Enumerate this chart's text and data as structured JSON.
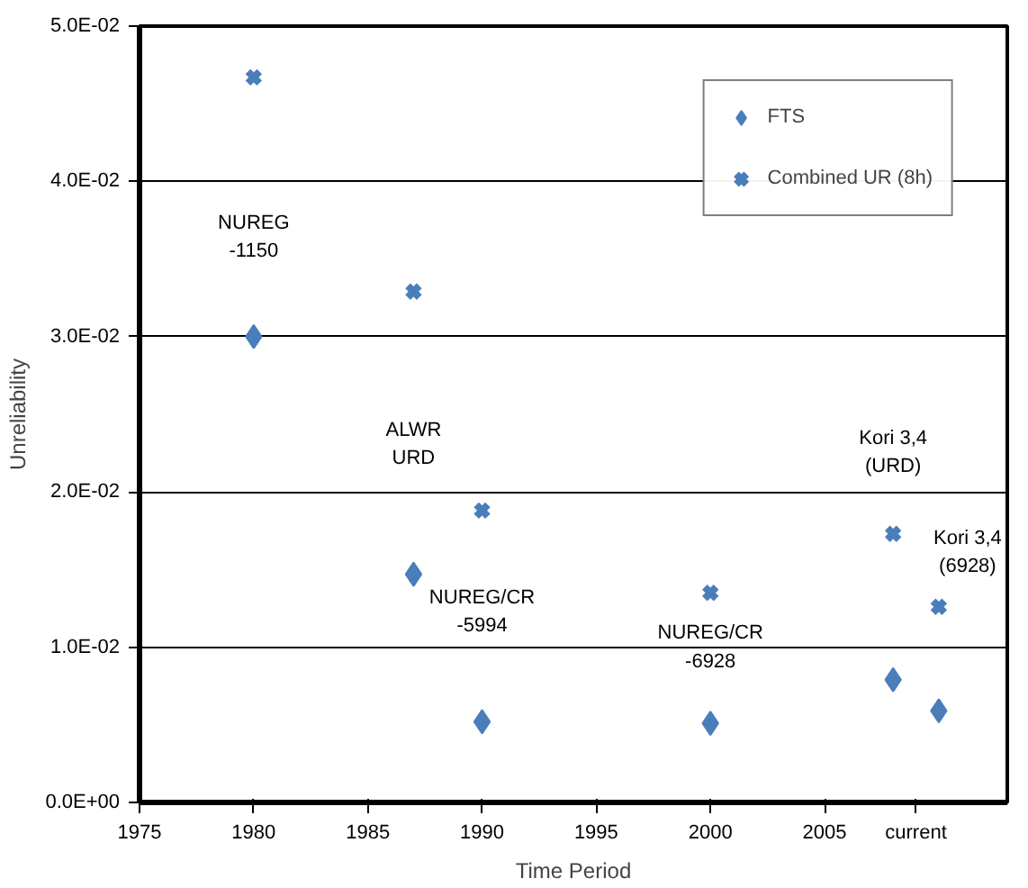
{
  "chart_data": {
    "type": "scatter",
    "xlabel": "Time Period",
    "ylabel": "Unreliability",
    "x": [
      1980,
      1987,
      1990,
      2000,
      2008,
      2010
    ],
    "series": [
      {
        "name": "FTS",
        "color": "#4a7ebb",
        "marker": "diamond",
        "values": [
          0.03,
          0.0147,
          0.0052,
          0.0051,
          0.0079,
          0.0059
        ]
      },
      {
        "name": "Combined UR (8h)",
        "color": "#4a7ebb",
        "marker": "cross",
        "values": [
          0.0467,
          0.0329,
          0.0188,
          0.0135,
          0.0173,
          0.0126
        ]
      }
    ],
    "xlim": [
      1975,
      2013
    ],
    "xticks": [
      1975,
      1980,
      1985,
      1990,
      1995,
      2000,
      2005,
      {
        "value": 2009,
        "label": "current"
      }
    ],
    "ylim": [
      0,
      0.05
    ],
    "yticks": [
      {
        "value": 0,
        "label": "0.0E+00"
      },
      {
        "value": 0.01,
        "label": "1.0E-02"
      },
      {
        "value": 0.02,
        "label": "2.0E-02"
      },
      {
        "value": 0.03,
        "label": "3.0E-02"
      },
      {
        "value": 0.04,
        "label": "4.0E-02"
      },
      {
        "value": 0.05,
        "label": "5.0E-02"
      }
    ],
    "grid": "y",
    "legend": "top right",
    "annotations": [
      "NUREG\n-1150",
      "ALWR\nURD",
      "NUREG/CR\n-5994",
      "NUREG/CR\n-6928",
      "Kori 3,4\n(URD)",
      "Kori 3,4\n(6928)"
    ]
  }
}
